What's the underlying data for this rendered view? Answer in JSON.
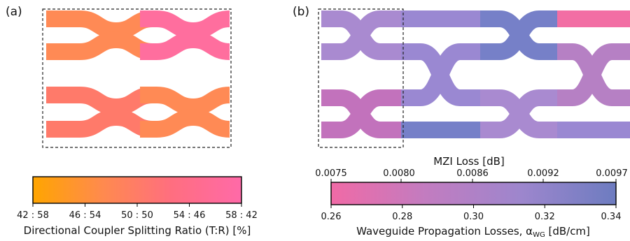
{
  "panel_a": {
    "label": "(a)"
  },
  "panel_b": {
    "label": "(b)"
  },
  "colorbar_a": {
    "ticks": [
      "42 : 58",
      "46 : 54",
      "50 : 50",
      "54 : 46",
      "58 : 42"
    ],
    "title": "Directional Coupler Splitting Ratio (T:R) [%]",
    "color_stops": [
      "#ffa500",
      "#ff8a4e",
      "#ff6e80",
      "#ff6aa8"
    ]
  },
  "colorbar_b": {
    "top_title": "MZI Loss [dB]",
    "top_ticks": [
      "0.0075",
      "0.0080",
      "0.0086",
      "0.0092",
      "0.0097"
    ],
    "bottom_ticks": [
      "0.26",
      "0.28",
      "0.30",
      "0.32",
      "0.34"
    ],
    "bottom_title_prefix": "Waveguide Propagation Losses, ",
    "bottom_title_symbol": "α",
    "bottom_title_sub": "WG",
    "bottom_title_unit": " [dB/cm]",
    "color_stops": [
      "#f06aa6",
      "#c27cc0",
      "#9d86cd",
      "#6d7cc0"
    ]
  },
  "colors": {
    "a_orange": "#ff8a55",
    "a_mixed": "#ff7a6a",
    "a_pink": "#ff6e9e",
    "b_lilac": "#a98ad0",
    "b_purple": "#9a88d2",
    "b_blue": "#7680c8",
    "b_magenta": "#c272bc",
    "b_mauve": "#b680c4",
    "b_pink": "#f26ea4"
  }
}
